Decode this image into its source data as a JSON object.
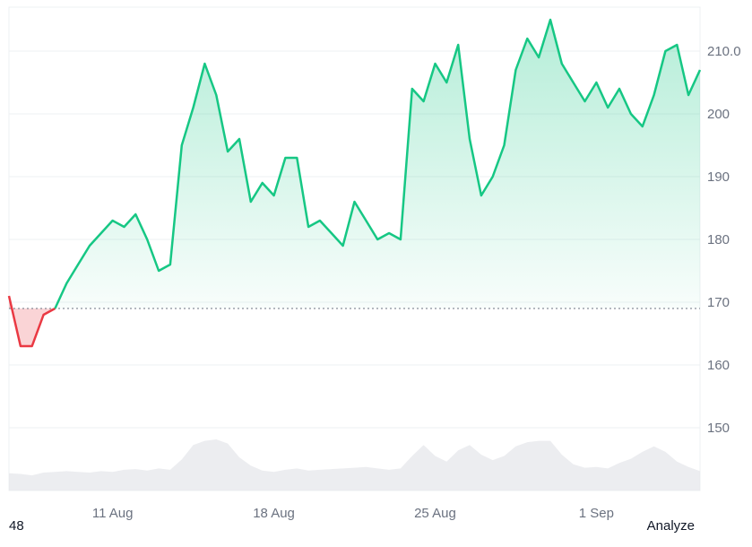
{
  "footer": {
    "left_text": "48",
    "analyze_label": "Analyze"
  },
  "colors": {
    "up": "#16c784",
    "down": "#ea3943",
    "grid": "#eef0f3",
    "volume": "#e5e7eb",
    "baseline": "#6b7280"
  },
  "chart_data": {
    "type": "line",
    "baseline": 169,
    "ylim": [
      140,
      217
    ],
    "yticks": [
      150,
      160,
      170,
      180,
      190,
      200,
      210
    ],
    "ytick_labels": [
      "150",
      "160",
      "170",
      "180",
      "190",
      "200",
      "210.0"
    ],
    "xticks": [
      {
        "label": "11 Aug",
        "x": "2024-08-11"
      },
      {
        "label": "18 Aug",
        "x": "2024-08-18"
      },
      {
        "label": "25 Aug",
        "x": "2024-08-25"
      },
      {
        "label": "1 Sep",
        "x": "2024-09-01"
      }
    ],
    "xlim": [
      "2024-08-06T12:00",
      "2024-09-05T12:00"
    ],
    "series": [
      {
        "x": [
          "2024-08-06T12:00",
          "2024-08-07T00:00",
          "2024-08-07T12:00",
          "2024-08-08T00:00",
          "2024-08-08T12:00",
          "2024-08-09T00:00",
          "2024-08-09T12:00",
          "2024-08-10T00:00",
          "2024-08-10T12:00",
          "2024-08-11T00:00",
          "2024-08-11T12:00",
          "2024-08-12T00:00",
          "2024-08-12T12:00",
          "2024-08-13T00:00",
          "2024-08-13T12:00",
          "2024-08-14T00:00",
          "2024-08-14T12:00",
          "2024-08-15T00:00",
          "2024-08-15T12:00",
          "2024-08-16T00:00",
          "2024-08-16T12:00",
          "2024-08-17T00:00",
          "2024-08-17T12:00",
          "2024-08-18T00:00",
          "2024-08-18T12:00",
          "2024-08-19T00:00",
          "2024-08-19T12:00",
          "2024-08-20T00:00",
          "2024-08-20T12:00",
          "2024-08-21T00:00",
          "2024-08-21T12:00",
          "2024-08-22T00:00",
          "2024-08-22T12:00",
          "2024-08-23T00:00",
          "2024-08-23T12:00",
          "2024-08-24T00:00",
          "2024-08-24T12:00",
          "2024-08-25T00:00",
          "2024-08-25T12:00",
          "2024-08-26T00:00",
          "2024-08-26T12:00",
          "2024-08-27T00:00",
          "2024-08-27T12:00",
          "2024-08-28T00:00",
          "2024-08-28T12:00",
          "2024-08-29T00:00",
          "2024-08-29T12:00",
          "2024-08-30T00:00",
          "2024-08-30T12:00",
          "2024-08-31T00:00",
          "2024-08-31T12:00",
          "2024-09-01T00:00",
          "2024-09-01T12:00",
          "2024-09-02T00:00",
          "2024-09-02T12:00",
          "2024-09-03T00:00",
          "2024-09-03T12:00",
          "2024-09-04T00:00",
          "2024-09-04T12:00",
          "2024-09-05T00:00",
          "2024-09-05T12:00"
        ],
        "values": [
          171,
          163,
          163,
          168,
          169,
          173,
          176,
          179,
          181,
          183,
          182,
          184,
          180,
          175,
          176,
          195,
          201,
          208,
          203,
          194,
          196,
          186,
          189,
          187,
          193,
          193,
          182,
          183,
          181,
          179,
          186,
          183,
          180,
          181,
          180,
          204,
          202,
          208,
          205,
          211,
          196,
          187,
          190,
          195,
          207,
          212,
          209,
          215,
          208,
          205,
          202,
          205,
          201,
          204,
          200,
          198,
          203,
          210,
          211,
          203,
          207
        ],
        "down_until_index": 4
      }
    ],
    "volume": [
      0.25,
      0.24,
      0.22,
      0.26,
      0.27,
      0.28,
      0.27,
      0.26,
      0.28,
      0.27,
      0.3,
      0.31,
      0.29,
      0.32,
      0.3,
      0.45,
      0.66,
      0.72,
      0.74,
      0.68,
      0.48,
      0.36,
      0.29,
      0.27,
      0.3,
      0.32,
      0.29,
      0.3,
      0.31,
      0.32,
      0.33,
      0.34,
      0.32,
      0.3,
      0.32,
      0.5,
      0.66,
      0.5,
      0.42,
      0.58,
      0.66,
      0.52,
      0.44,
      0.5,
      0.64,
      0.7,
      0.72,
      0.72,
      0.52,
      0.38,
      0.33,
      0.34,
      0.32,
      0.4,
      0.46,
      0.56,
      0.64,
      0.56,
      0.42,
      0.34,
      0.28
    ]
  }
}
